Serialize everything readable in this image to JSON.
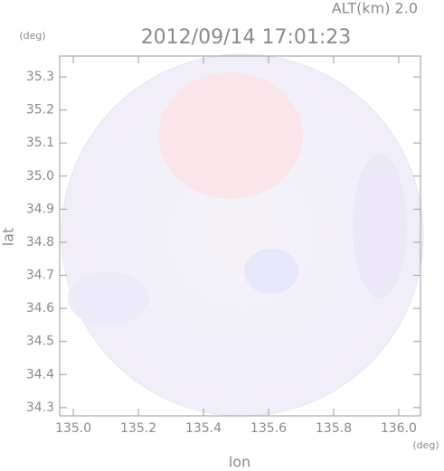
{
  "chart_data": {
    "type": "radar-field",
    "header": "ALT(km) 2.0",
    "title": "2012/09/14 17:01:23",
    "y_unit": "(deg)",
    "x_unit": "(deg)",
    "xlabel": "lon",
    "ylabel": "lat",
    "xlim": [
      134.958,
      136.067
    ],
    "ylim": [
      34.275,
      35.363
    ],
    "xticks": [
      {
        "value": 135,
        "label": "135.0"
      },
      135.2,
      135.4,
      135.6,
      135.8,
      {
        "value": 136,
        "label": "136.0"
      }
    ],
    "yticks": [
      34.3,
      34.4,
      34.5,
      34.6,
      34.7,
      34.8,
      34.9,
      {
        "value": 35,
        "label": "35.0"
      },
      35.1,
      35.2,
      35.3
    ]
  }
}
